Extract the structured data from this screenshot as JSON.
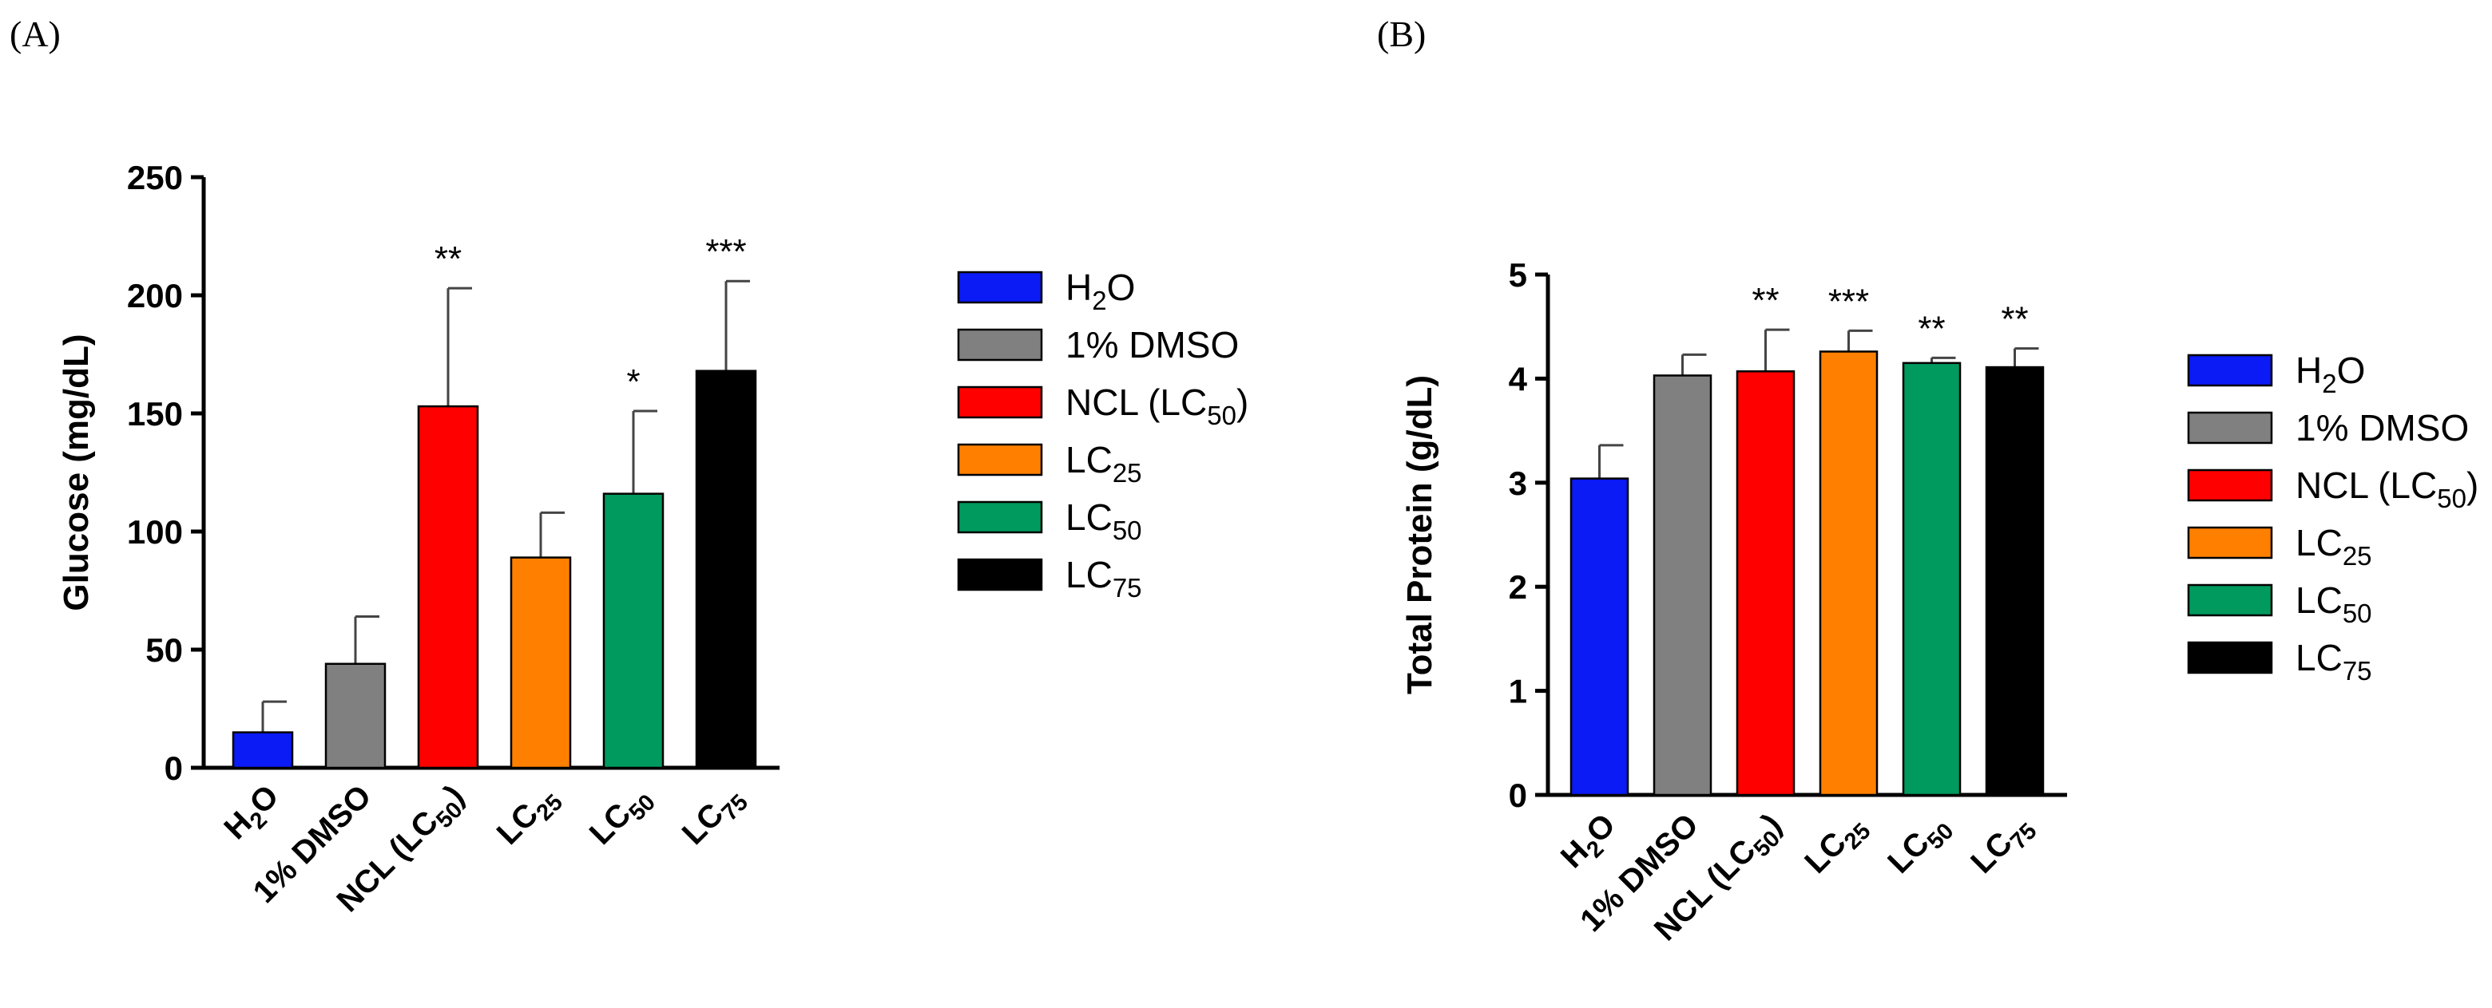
{
  "panels": [
    {
      "label": "(A)"
    },
    {
      "label": "(B)"
    }
  ],
  "chart_data": [
    {
      "type": "bar",
      "panel": "(A)",
      "title": "",
      "xlabel": "",
      "ylabel": "Glucose (mg/dL)",
      "ylim": [
        0,
        250
      ],
      "yticks": [
        "0",
        "50",
        "100",
        "150",
        "200",
        "250"
      ],
      "categories": [
        {
          "main": "H",
          "sub": "2",
          "tail": "O"
        },
        {
          "main": "1% DMSO",
          "sub": "",
          "tail": ""
        },
        {
          "main": "NCL (LC",
          "sub": "50",
          "tail": ")"
        },
        {
          "main": "LC",
          "sub": "25",
          "tail": ""
        },
        {
          "main": "LC",
          "sub": "50",
          "tail": ""
        },
        {
          "main": "LC",
          "sub": "75",
          "tail": ""
        }
      ],
      "values": [
        15,
        44,
        153,
        89,
        116,
        168
      ],
      "errors": [
        13,
        20,
        50,
        19,
        35,
        38
      ],
      "significance": [
        "",
        "",
        "**",
        "",
        "*",
        "***"
      ],
      "colors": [
        "#0a1bf5",
        "#808080",
        "#ff0000",
        "#ff8000",
        "#009a5e",
        "#000000"
      ],
      "legend": [
        {
          "main": "H",
          "sub": "2",
          "tail": "O"
        },
        {
          "main": "1% DMSO",
          "sub": "",
          "tail": ""
        },
        {
          "main": "NCL (LC",
          "sub": "50",
          "tail": ")"
        },
        {
          "main": "LC",
          "sub": "25",
          "tail": ""
        },
        {
          "main": "LC",
          "sub": "50",
          "tail": ""
        },
        {
          "main": "LC",
          "sub": "75",
          "tail": ""
        }
      ],
      "grid": false,
      "legend_position": "right"
    },
    {
      "type": "bar",
      "panel": "(B)",
      "title": "",
      "xlabel": "",
      "ylabel": "Total Protein (g/dL)",
      "ylim": [
        0,
        5
      ],
      "yticks": [
        "0",
        "1",
        "2",
        "3",
        "4",
        "5"
      ],
      "categories": [
        {
          "main": "H",
          "sub": "2",
          "tail": "O"
        },
        {
          "main": "1% DMSO",
          "sub": "",
          "tail": ""
        },
        {
          "main": "NCL (LC",
          "sub": "50",
          "tail": ")"
        },
        {
          "main": "LC",
          "sub": "25",
          "tail": ""
        },
        {
          "main": "LC",
          "sub": "50",
          "tail": ""
        },
        {
          "main": "LC",
          "sub": "75",
          "tail": ""
        }
      ],
      "values": [
        3.04,
        4.03,
        4.07,
        4.26,
        4.15,
        4.11
      ],
      "errors": [
        0.32,
        0.2,
        0.4,
        0.2,
        0.05,
        0.18
      ],
      "significance": [
        "",
        "",
        "**",
        "***",
        "**",
        "**"
      ],
      "colors": [
        "#0a1bf5",
        "#808080",
        "#ff0000",
        "#ff8000",
        "#009a5e",
        "#000000"
      ],
      "legend": [
        {
          "main": "H",
          "sub": "2",
          "tail": "O"
        },
        {
          "main": "1% DMSO",
          "sub": "",
          "tail": ""
        },
        {
          "main": "NCL (LC",
          "sub": "50",
          "tail": ")"
        },
        {
          "main": "LC",
          "sub": "25",
          "tail": ""
        },
        {
          "main": "LC",
          "sub": "50",
          "tail": ""
        },
        {
          "main": "LC",
          "sub": "75",
          "tail": ""
        }
      ],
      "grid": false,
      "legend_position": "right"
    }
  ]
}
